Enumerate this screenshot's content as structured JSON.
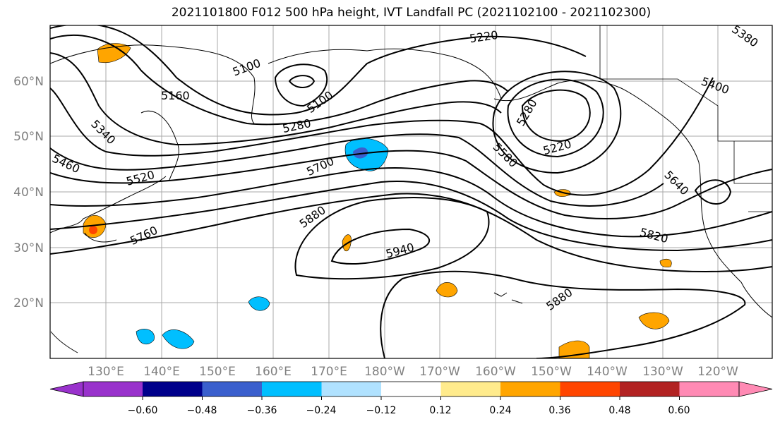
{
  "title": "2021101800 F012 500 hPa height, IVT Landfall PC (2021102100 - 2021102300)",
  "map": {
    "lon_labels": [
      "130°E",
      "140°E",
      "150°E",
      "160°E",
      "170°E",
      "180°W",
      "170°W",
      "160°W",
      "150°W",
      "140°W",
      "130°W",
      "120°W"
    ],
    "lat_labels": [
      "60°N",
      "50°N",
      "40°N",
      "30°N",
      "20°N"
    ],
    "contour_labels": [
      {
        "text": "5220",
        "name": "contour-label-5220-north"
      },
      {
        "text": "5380",
        "name": "contour-label-5380"
      },
      {
        "text": "5100",
        "name": "contour-label-5100-west"
      },
      {
        "text": "5100",
        "name": "contour-label-5100-east"
      },
      {
        "text": "5160",
        "name": "contour-label-5160"
      },
      {
        "text": "5340",
        "name": "contour-label-5340"
      },
      {
        "text": "5280",
        "name": "contour-label-5280-west"
      },
      {
        "text": "5280",
        "name": "contour-label-5280-east"
      },
      {
        "text": "5400",
        "name": "contour-label-5400"
      },
      {
        "text": "5220",
        "name": "contour-label-5220-low"
      },
      {
        "text": "5460",
        "name": "contour-label-5460"
      },
      {
        "text": "5520",
        "name": "contour-label-5520"
      },
      {
        "text": "5700",
        "name": "contour-label-5700"
      },
      {
        "text": "5580",
        "name": "contour-label-5580"
      },
      {
        "text": "5640",
        "name": "contour-label-5640"
      },
      {
        "text": "5880",
        "name": "contour-label-5880-west"
      },
      {
        "text": "5760",
        "name": "contour-label-5760"
      },
      {
        "text": "5940",
        "name": "contour-label-5940"
      },
      {
        "text": "5820",
        "name": "contour-label-5820"
      },
      {
        "text": "5880",
        "name": "contour-label-5880-east"
      }
    ]
  },
  "colorbar": {
    "colors": [
      "#9932cc",
      "#00008b",
      "#3a5fcd",
      "#00bfff",
      "#b0e2ff",
      "#ffffff",
      "#ffeb8c",
      "#ffa500",
      "#ff4500",
      "#b22222",
      "#ff8ab4"
    ],
    "tick_labels": [
      "−0.60",
      "−0.48",
      "−0.36",
      "−0.24",
      "−0.12",
      "0.12",
      "0.24",
      "0.36",
      "0.48",
      "0.60"
    ]
  }
}
